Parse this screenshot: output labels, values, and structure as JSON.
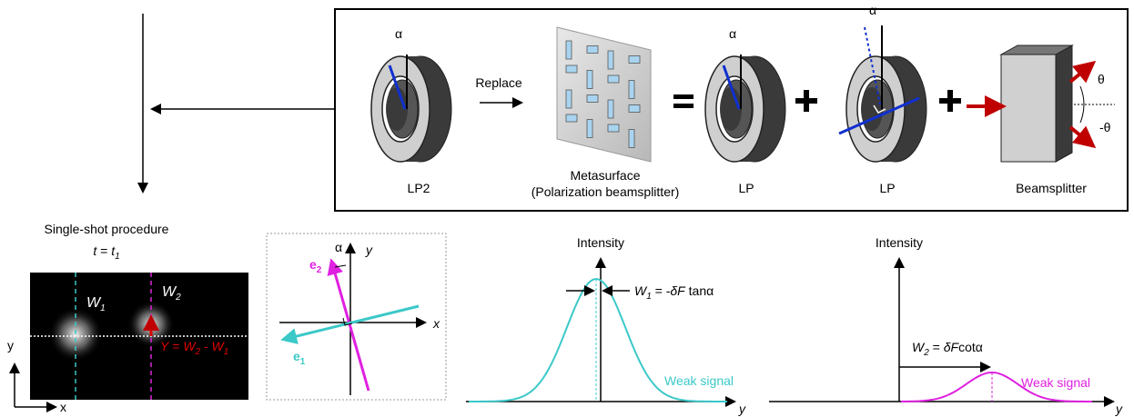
{
  "top_panel": {
    "lp2_label": "LP2",
    "replace": "Replace",
    "metasurface_label": [
      "Metasurface",
      "(Polarization beamsplitter)"
    ],
    "lp_label_1": "LP",
    "lp_label_2": "LP",
    "beamsplitter_label": "Beamsplitter",
    "alpha_1": "α",
    "alpha_2": "α",
    "alpha_3": "α",
    "theta": "θ",
    "minus_theta": "-θ"
  },
  "camera_panel": {
    "title": "Single-shot procedure",
    "time": [
      "t",
      " = ",
      "t",
      "1"
    ],
    "w1": [
      "W",
      "1"
    ],
    "w2": [
      "W",
      "2"
    ],
    "y_formula": [
      "Y",
      " = ",
      "W",
      "2",
      " - ",
      "W",
      "1"
    ],
    "axis_x": "x",
    "axis_y": "y"
  },
  "basis_panel": {
    "alpha": "α",
    "x": "x",
    "y": "y",
    "e1": [
      "e",
      "1"
    ],
    "e2": [
      "e",
      "2"
    ]
  },
  "w1_plot": {
    "y_label": "Intensity",
    "x_label": "y",
    "shift": [
      "W",
      "1",
      " = -",
      "δF",
      " tanα"
    ],
    "legend": "Weak signal"
  },
  "w2_plot": {
    "y_label": "Intensity",
    "x_label": "y",
    "shift": [
      "W",
      "2",
      " = ",
      "δF",
      "cotα"
    ],
    "legend": "Weak signal"
  }
}
